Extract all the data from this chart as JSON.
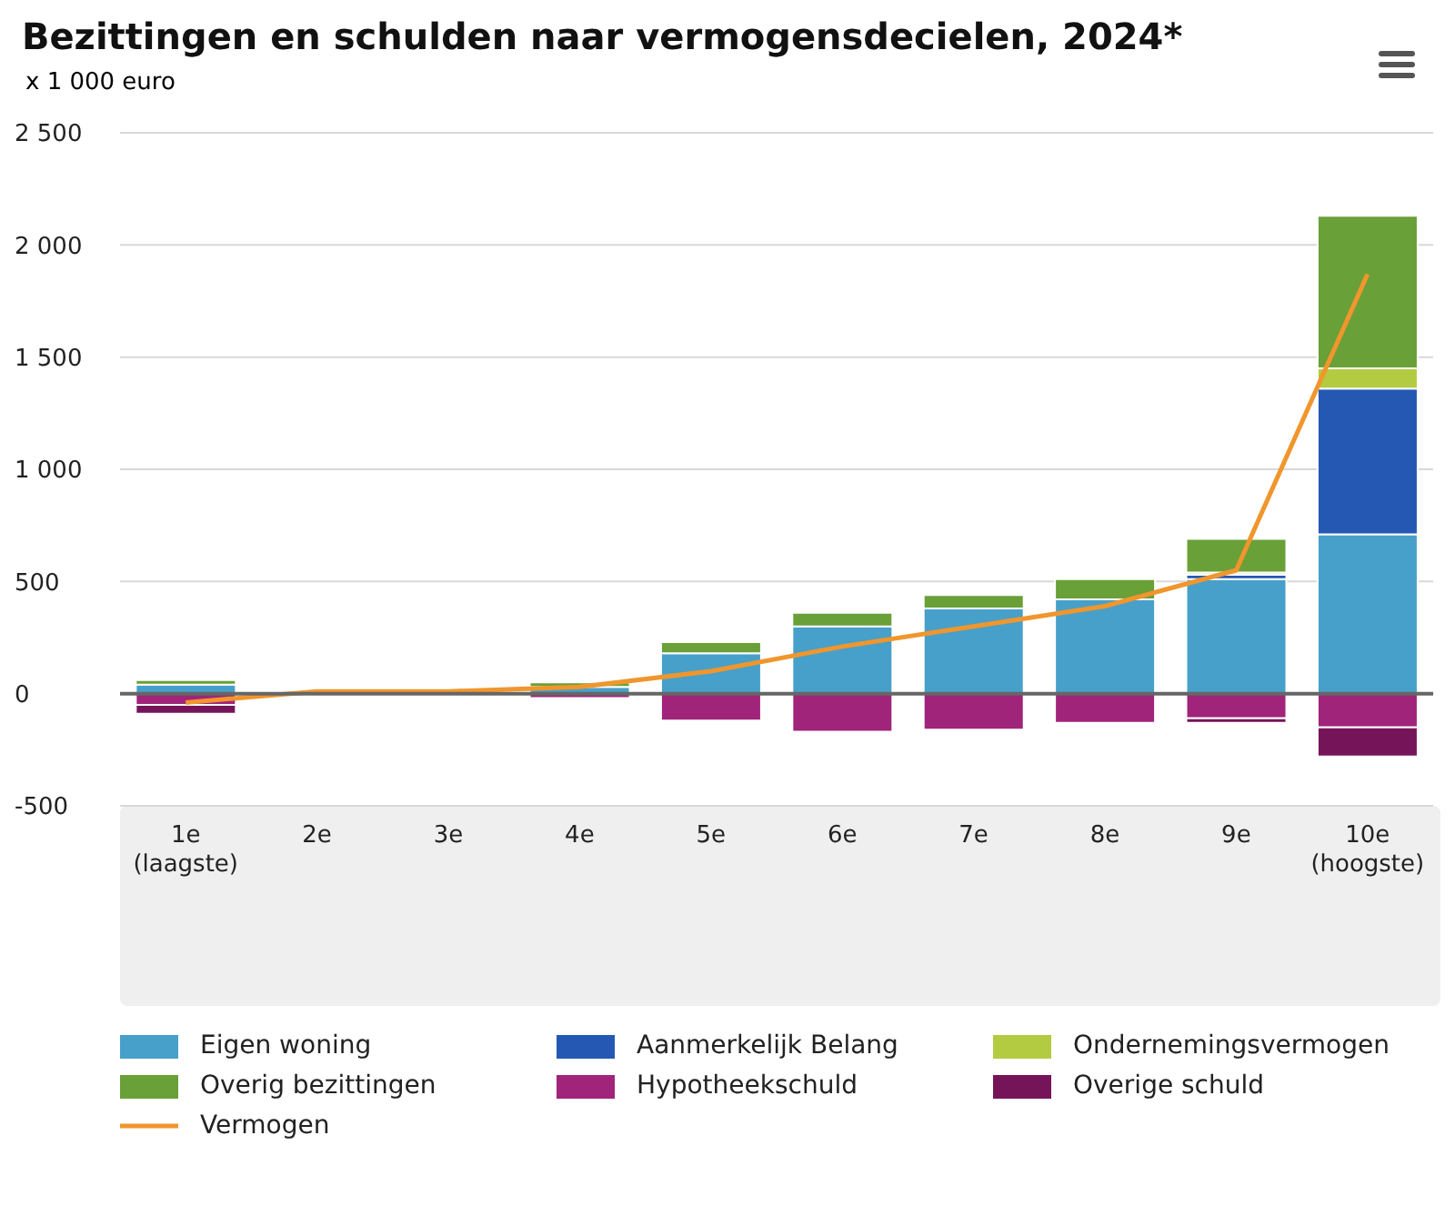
{
  "chart_data": {
    "type": "bar",
    "stacked": true,
    "title": "Bezittingen en schulden naar vermogensdecielen, 2024*",
    "ylabel": "x 1 000 euro",
    "categories": [
      "1e (laagste)",
      "2e",
      "3e",
      "4e",
      "5e",
      "6e",
      "7e",
      "8e",
      "9e",
      "10e (hoogste)"
    ],
    "series": [
      {
        "name": "Eigen woning",
        "color": "#47a0c9",
        "values": [
          40,
          0,
          0,
          30,
          180,
          300,
          380,
          420,
          510,
          710
        ]
      },
      {
        "name": "Aanmerkelijk Belang",
        "color": "#2458b3",
        "values": [
          0,
          0,
          0,
          0,
          0,
          0,
          0,
          0,
          20,
          650
        ]
      },
      {
        "name": "Ondernemingsvermogen",
        "color": "#b3cb41",
        "values": [
          0,
          0,
          0,
          0,
          0,
          0,
          0,
          0,
          10,
          90
        ]
      },
      {
        "name": "Overig bezittingen",
        "color": "#69a037",
        "values": [
          20,
          10,
          10,
          20,
          50,
          60,
          60,
          90,
          150,
          680
        ]
      },
      {
        "name": "Hypotheekschuld",
        "color": "#a0247a",
        "values": [
          -50,
          0,
          0,
          -20,
          -120,
          -170,
          -160,
          -130,
          -110,
          -150
        ]
      },
      {
        "name": "Overige schuld",
        "color": "#76145a",
        "values": [
          -40,
          0,
          0,
          0,
          0,
          0,
          0,
          0,
          -20,
          -130
        ]
      },
      {
        "name": "Vermogen",
        "type": "line",
        "color": "#f0962d",
        "values": [
          -40,
          10,
          10,
          30,
          100,
          210,
          300,
          390,
          550,
          1870
        ]
      }
    ],
    "ylim": [
      -500,
      2500
    ],
    "yticks": [
      {
        "value": -500,
        "label": "-500"
      },
      0,
      500,
      {
        "value": 1000,
        "label": "1 000"
      },
      {
        "value": 1500,
        "label": "1 500"
      },
      {
        "value": 2000,
        "label": "2 000"
      },
      {
        "value": 2500,
        "label": "2 500"
      }
    ],
    "grid": "y",
    "legend": "bottom",
    "marker": "none",
    "ref_lines": [
      {
        "axis": "y",
        "value": 0,
        "color": "#666666"
      }
    ]
  }
}
